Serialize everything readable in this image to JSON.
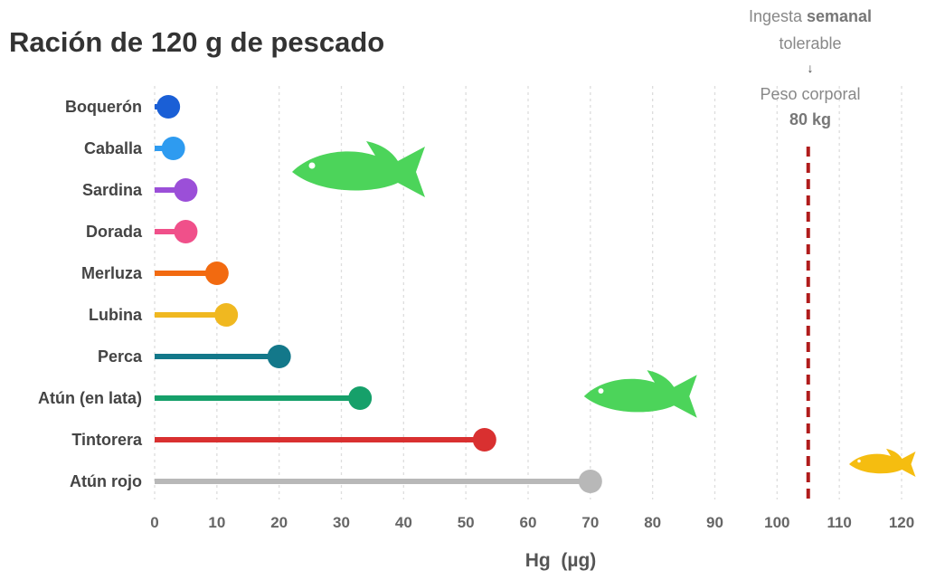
{
  "chart_data": {
    "type": "lollipop",
    "title": "Ración de 120 g de pescado",
    "xlabel": "Hg  (µg)",
    "xlim": [
      0,
      120
    ],
    "xticks": [
      0,
      10,
      20,
      30,
      40,
      50,
      60,
      70,
      80,
      90,
      100,
      110,
      120
    ],
    "grid": "vertical dotted",
    "categories": [
      "Boquerón",
      "Caballa",
      "Sardina",
      "Dorada",
      "Merluza",
      "Lubina",
      "Perca",
      "Atún (en lata)",
      "Tintorera",
      "Atún rojo"
    ],
    "values": [
      2.2,
      3,
      5,
      5,
      10,
      11.5,
      20,
      33,
      53,
      70
    ],
    "colors": [
      "#1a5fd6",
      "#2e9bf0",
      "#9b4fd8",
      "#f0508a",
      "#f26a10",
      "#f0b820",
      "#13788a",
      "#16a06a",
      "#d93030",
      "#b8b8b8"
    ],
    "reference_line": {
      "value": 105,
      "color": "#b01c1c",
      "style": "dashed",
      "annotation": {
        "line1_regular": "Ingesta ",
        "line1_bold": "semanal",
        "line2": "tolerable",
        "arrow": "↓",
        "line3": "Peso corporal",
        "line4": "80 kg"
      }
    },
    "decorations": [
      {
        "icon": "fish-icon",
        "color": "#4cd45a"
      },
      {
        "icon": "fish-icon",
        "color": "#4cd45a"
      },
      {
        "icon": "fish-icon",
        "color": "#f5bd10"
      }
    ]
  }
}
